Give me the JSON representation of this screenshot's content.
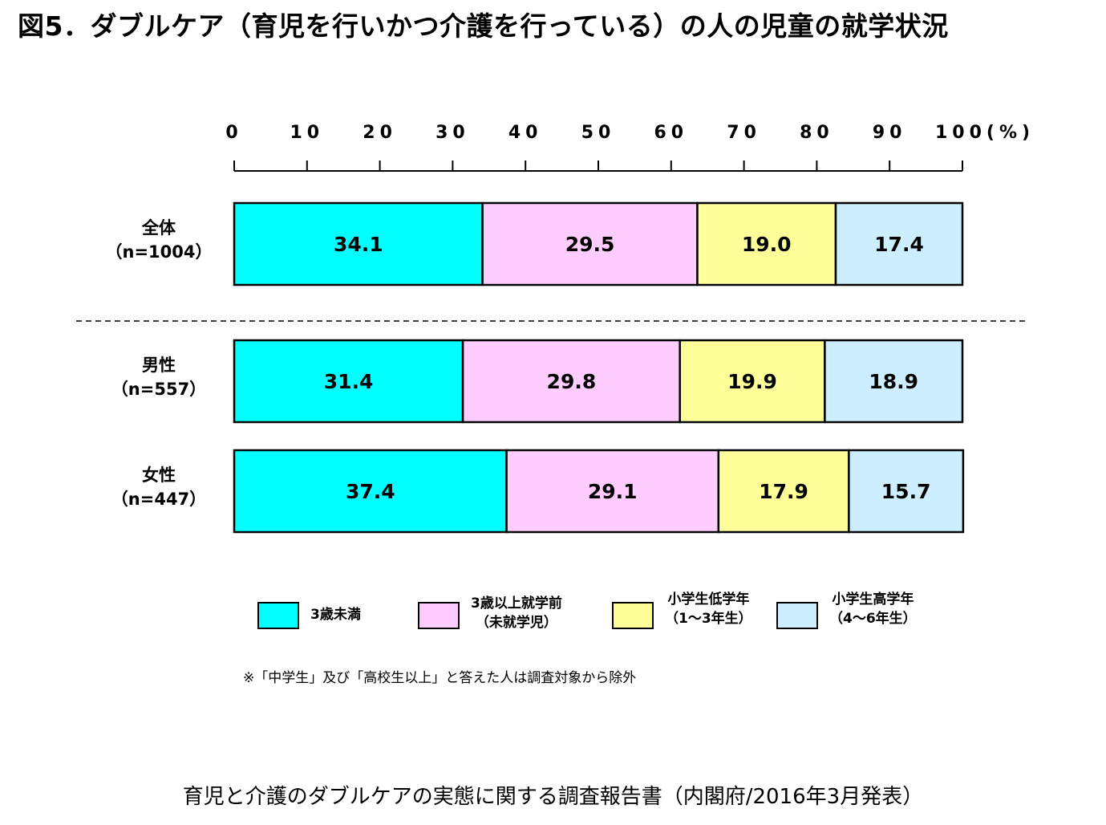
{
  "title": "図5．ダブルケア（育児を行いかつ介護を行っている）の人の児童の就学状況",
  "chart_data": {
    "type": "bar",
    "orientation": "horizontal",
    "stacked": true,
    "percent": true,
    "xlim": [
      0,
      100
    ],
    "x_ticks": [
      "0",
      "10",
      "20",
      "30",
      "40",
      "50",
      "60",
      "70",
      "80",
      "90",
      "100(%)"
    ],
    "categories": [
      {
        "line1": "全体",
        "line2": "（n=1004）"
      },
      {
        "line1": "男性",
        "line2": "（n=557）"
      },
      {
        "line1": "女性",
        "line2": "（n=447）"
      }
    ],
    "series": [
      {
        "name": "3歳未満",
        "legend_line1": "3歳未満",
        "legend_line2": "",
        "color": "#00ffff",
        "values": [
          34.1,
          31.4,
          37.4
        ],
        "labels": [
          "34.1",
          "31.4",
          "37.4"
        ]
      },
      {
        "name": "3歳以上就学前（未就学児）",
        "legend_line1": "3歳以上就学前",
        "legend_line2": "（未就学児）",
        "color": "#ffccff",
        "values": [
          29.5,
          29.8,
          29.1
        ],
        "labels": [
          "29.5",
          "29.8",
          "29.1"
        ]
      },
      {
        "name": "小学生低学年（1～3年生）",
        "legend_line1": "小学生低学年",
        "legend_line2": "（1～3年生）",
        "color": "#ffff99",
        "values": [
          19.0,
          19.9,
          17.9
        ],
        "labels": [
          "19.0",
          "19.9",
          "17.9"
        ]
      },
      {
        "name": "小学生高学年（4～6年生）",
        "legend_line1": "小学生高学年",
        "legend_line2": "（4～6年生）",
        "color": "#cceeff",
        "values": [
          17.4,
          18.9,
          15.7
        ],
        "labels": [
          "17.4",
          "18.9",
          "15.7"
        ]
      }
    ],
    "grid": false,
    "legend_position": "bottom"
  },
  "note": "※「中学生」及び「高校生以上」と答えた人は調査対象から除外",
  "source": "育児と介護のダブルケアの実態に関する調査報告書（内閣府/2016年3月発表）"
}
